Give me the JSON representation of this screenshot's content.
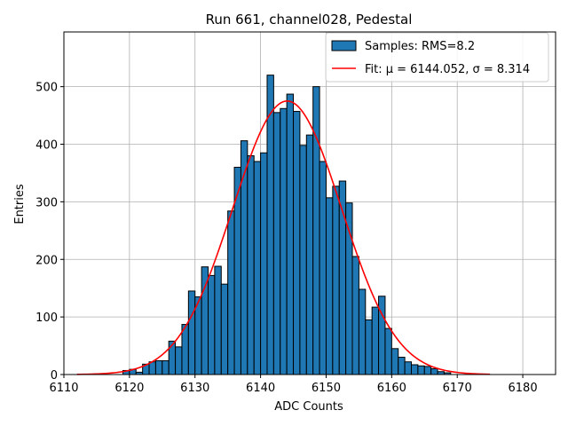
{
  "chart_data": {
    "type": "bar",
    "title": "Run 661, channel028, Pedestal",
    "xlabel": "ADC Counts",
    "ylabel": "Entries",
    "xlim": [
      6110,
      6185
    ],
    "ylim": [
      0,
      595
    ],
    "xticks": [
      6110,
      6120,
      6130,
      6140,
      6150,
      6160,
      6170,
      6180
    ],
    "yticks": [
      0,
      100,
      200,
      300,
      400,
      500
    ],
    "grid": true,
    "legend_position": "top-right",
    "bin_width": 1,
    "bins_start": [
      6119,
      6120,
      6121,
      6122,
      6123,
      6124,
      6125,
      6126,
      6127,
      6128,
      6129,
      6130,
      6131,
      6132,
      6133,
      6134,
      6135,
      6136,
      6137,
      6138,
      6139,
      6140,
      6141,
      6142,
      6143,
      6144,
      6145,
      6146,
      6147,
      6148,
      6149,
      6150,
      6151,
      6152,
      6153,
      6154,
      6155,
      6156,
      6157,
      6158,
      6159,
      6160,
      6161,
      6162,
      6163,
      6164,
      6165,
      6166,
      6167,
      6168
    ],
    "series": [
      {
        "name": "Samples: RMS=8.2",
        "kind": "histogram",
        "color": "#1f77b4",
        "edge_color": "#000000",
        "values": [
          7,
          9,
          4,
          18,
          22,
          24,
          24,
          58,
          48,
          87,
          145,
          135,
          187,
          172,
          188,
          157,
          284,
          360,
          406,
          380,
          370,
          385,
          520,
          455,
          462,
          487,
          457,
          398,
          416,
          500,
          370,
          307,
          327,
          336,
          298,
          205,
          148,
          95,
          117,
          136,
          80,
          45,
          30,
          22,
          17,
          15,
          14,
          10,
          5,
          3
        ]
      },
      {
        "name": "Fit: μ = 6144.052, σ = 8.314",
        "kind": "gaussian-fit",
        "color": "#ff0000",
        "mu": 6144.052,
        "sigma": 8.314,
        "amplitude": 475,
        "x_range": [
          6112,
          6175
        ]
      }
    ]
  }
}
